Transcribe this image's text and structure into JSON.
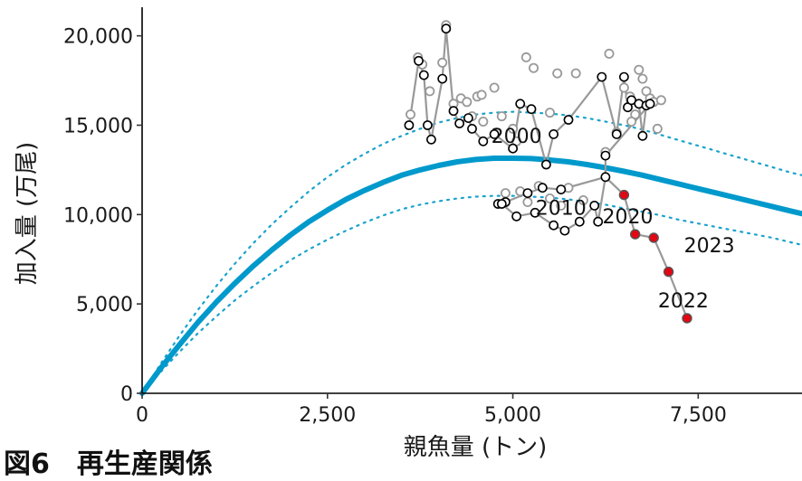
{
  "caption": "図6　再生産関係",
  "chart_data": {
    "type": "scatter",
    "xlabel": "親魚量 (トン)",
    "ylabel": "加入量 (万尾)",
    "xlim": [
      0,
      8900
    ],
    "ylim": [
      0,
      21600
    ],
    "x_ticks": [
      0,
      2500,
      5000,
      7500
    ],
    "x_tick_labels": [
      "0",
      "2,500",
      "5,000",
      "7,500"
    ],
    "y_ticks": [
      0,
      5000,
      10000,
      15000,
      20000
    ],
    "y_tick_labels": [
      "0",
      "5,000",
      "10,000",
      "15,000",
      "20,000"
    ],
    "grid": false,
    "colors": {
      "curve": "#0099cc",
      "band": "#1aa3cc",
      "line": "#999999",
      "point_recent": "#e30613",
      "point_stroke": "#000000",
      "point_grey": "#999999"
    },
    "curve": {
      "style": "solid",
      "points": [
        [
          0,
          0
        ],
        [
          250,
          1400
        ],
        [
          500,
          2700
        ],
        [
          750,
          3950
        ],
        [
          1000,
          5100
        ],
        [
          1250,
          6150
        ],
        [
          1500,
          7130
        ],
        [
          1750,
          8020
        ],
        [
          2000,
          8850
        ],
        [
          2250,
          9600
        ],
        [
          2500,
          10250
        ],
        [
          2750,
          10850
        ],
        [
          3000,
          11350
        ],
        [
          3250,
          11800
        ],
        [
          3500,
          12200
        ],
        [
          3750,
          12500
        ],
        [
          4000,
          12750
        ],
        [
          4250,
          12950
        ],
        [
          4500,
          13080
        ],
        [
          4750,
          13150
        ],
        [
          5000,
          13150
        ],
        [
          5250,
          13130
        ],
        [
          5500,
          13050
        ],
        [
          5750,
          12950
        ],
        [
          6000,
          12800
        ],
        [
          6250,
          12620
        ],
        [
          6500,
          12420
        ],
        [
          6750,
          12200
        ],
        [
          7000,
          11950
        ],
        [
          7250,
          11700
        ],
        [
          7500,
          11450
        ],
        [
          7750,
          11200
        ],
        [
          8000,
          10950
        ],
        [
          8250,
          10700
        ],
        [
          8500,
          10450
        ],
        [
          8750,
          10200
        ],
        [
          8900,
          10050
        ]
      ]
    },
    "band_upper": {
      "style": "dotted",
      "points": [
        [
          0,
          0
        ],
        [
          250,
          1650
        ],
        [
          500,
          3200
        ],
        [
          750,
          4650
        ],
        [
          1000,
          6000
        ],
        [
          1250,
          7250
        ],
        [
          1500,
          8400
        ],
        [
          1750,
          9450
        ],
        [
          2000,
          10400
        ],
        [
          2250,
          11300
        ],
        [
          2500,
          12100
        ],
        [
          2750,
          12800
        ],
        [
          3000,
          13400
        ],
        [
          3250,
          13950
        ],
        [
          3500,
          14400
        ],
        [
          3750,
          14800
        ],
        [
          4000,
          15150
        ],
        [
          4250,
          15400
        ],
        [
          4500,
          15600
        ],
        [
          4750,
          15700
        ],
        [
          5000,
          15750
        ],
        [
          5250,
          15700
        ],
        [
          5500,
          15650
        ],
        [
          5750,
          15550
        ],
        [
          6000,
          15400
        ],
        [
          6250,
          15200
        ],
        [
          6500,
          15000
        ],
        [
          6750,
          14750
        ],
        [
          7000,
          14450
        ],
        [
          7250,
          14150
        ],
        [
          7500,
          13850
        ],
        [
          7750,
          13550
        ],
        [
          8000,
          13250
        ],
        [
          8250,
          12950
        ],
        [
          8500,
          12650
        ],
        [
          8750,
          12350
        ],
        [
          8900,
          12200
        ]
      ]
    },
    "band_lower": {
      "style": "dotted",
      "points": [
        [
          0,
          0
        ],
        [
          250,
          1200
        ],
        [
          500,
          2300
        ],
        [
          750,
          3350
        ],
        [
          1000,
          4300
        ],
        [
          1250,
          5200
        ],
        [
          1500,
          6000
        ],
        [
          1750,
          6750
        ],
        [
          2000,
          7450
        ],
        [
          2250,
          8050
        ],
        [
          2500,
          8600
        ],
        [
          2750,
          9100
        ],
        [
          3000,
          9550
        ],
        [
          3250,
          9950
        ],
        [
          3500,
          10300
        ],
        [
          3750,
          10550
        ],
        [
          4000,
          10750
        ],
        [
          4250,
          10900
        ],
        [
          4500,
          11000
        ],
        [
          4750,
          11050
        ],
        [
          5000,
          11050
        ],
        [
          5250,
          11000
        ],
        [
          5500,
          10950
        ],
        [
          5750,
          10850
        ],
        [
          6000,
          10700
        ],
        [
          6250,
          10550
        ],
        [
          6500,
          10350
        ],
        [
          6750,
          10150
        ],
        [
          7000,
          9950
        ],
        [
          7250,
          9700
        ],
        [
          7500,
          9500
        ],
        [
          7750,
          9300
        ],
        [
          8000,
          9100
        ],
        [
          8250,
          8900
        ],
        [
          8500,
          8700
        ],
        [
          8750,
          8450
        ],
        [
          8900,
          8300
        ]
      ]
    },
    "series": [
      {
        "style": "grey-open",
        "points": [
          [
            3620,
            15600
          ],
          [
            3720,
            18800
          ],
          [
            3780,
            18400
          ],
          [
            3880,
            16900
          ],
          [
            4050,
            18500
          ],
          [
            4100,
            20600
          ],
          [
            4200,
            16200
          ],
          [
            4300,
            16500
          ],
          [
            4380,
            16300
          ],
          [
            4450,
            15500
          ],
          [
            4520,
            16600
          ],
          [
            4580,
            16700
          ],
          [
            4600,
            15200
          ],
          [
            4750,
            17100
          ],
          [
            4850,
            15500
          ],
          [
            5000,
            14800
          ],
          [
            5050,
            14100
          ],
          [
            5180,
            18800
          ],
          [
            5280,
            18200
          ],
          [
            5500,
            15700
          ],
          [
            5600,
            17900
          ],
          [
            5850,
            17900
          ],
          [
            6300,
            19000
          ],
          [
            6500,
            17100
          ],
          [
            6580,
            16600
          ],
          [
            6650,
            15600
          ],
          [
            6700,
            18100
          ],
          [
            6750,
            17600
          ],
          [
            6800,
            16900
          ],
          [
            6850,
            16500
          ],
          [
            6900,
            16300
          ],
          [
            6950,
            14800
          ],
          [
            7000,
            16400
          ],
          [
            6250,
            13500
          ],
          [
            6400,
            14600
          ],
          [
            6600,
            15200
          ],
          [
            4900,
            11200
          ],
          [
            5100,
            11300
          ],
          [
            5200,
            10700
          ],
          [
            5350,
            11600
          ],
          [
            5500,
            10900
          ],
          [
            5650,
            10500
          ],
          [
            5750,
            11500
          ],
          [
            5950,
            10800
          ]
        ]
      },
      {
        "style": "black-open",
        "points": [
          [
            3600,
            15000
          ],
          [
            3730,
            18600
          ],
          [
            3800,
            17800
          ],
          [
            3850,
            15000
          ],
          [
            3900,
            14200
          ],
          [
            4050,
            17600
          ],
          [
            4100,
            20400
          ],
          [
            4200,
            15800
          ],
          [
            4280,
            15100
          ],
          [
            4400,
            15400
          ],
          [
            4450,
            14800
          ],
          [
            4600,
            14100
          ],
          [
            4750,
            14500
          ],
          [
            5000,
            13700
          ],
          [
            5100,
            16200
          ],
          [
            5250,
            15900
          ],
          [
            5450,
            12800
          ],
          [
            5550,
            14500
          ],
          [
            5750,
            15300
          ],
          [
            6200,
            17700
          ],
          [
            6400,
            14500
          ],
          [
            6500,
            17700
          ],
          [
            6550,
            16000
          ],
          [
            6600,
            16400
          ],
          [
            6700,
            16200
          ],
          [
            6750,
            14400
          ],
          [
            6800,
            16100
          ],
          [
            6850,
            16200
          ],
          [
            6250,
            13300
          ],
          [
            5650,
            11400
          ],
          [
            5400,
            11500
          ],
          [
            5200,
            11200
          ],
          [
            4900,
            10700
          ],
          [
            4800,
            10600
          ],
          [
            4850,
            10600
          ],
          [
            5050,
            9900
          ],
          [
            5300,
            10100
          ],
          [
            5550,
            9400
          ],
          [
            5700,
            9100
          ],
          [
            5900,
            9600
          ],
          [
            6100,
            10500
          ],
          [
            6150,
            9600
          ],
          [
            6250,
            12100
          ]
        ]
      },
      {
        "style": "red-filled",
        "points": [
          [
            6500,
            11100
          ],
          [
            6650,
            8900
          ],
          [
            6900,
            8700
          ],
          [
            7100,
            6800
          ],
          [
            7350,
            4200
          ]
        ]
      }
    ],
    "path": [
      [
        3600,
        15000
      ],
      [
        3730,
        18600
      ],
      [
        3800,
        17800
      ],
      [
        3850,
        15000
      ],
      [
        3900,
        14200
      ],
      [
        4050,
        17600
      ],
      [
        4100,
        20400
      ],
      [
        4200,
        15800
      ],
      [
        4280,
        15100
      ],
      [
        4400,
        15400
      ],
      [
        4450,
        14800
      ],
      [
        4600,
        14100
      ],
      [
        4750,
        14500
      ],
      [
        5000,
        13700
      ],
      [
        5100,
        16200
      ],
      [
        5250,
        15900
      ],
      [
        5450,
        12800
      ],
      [
        5550,
        14500
      ],
      [
        5750,
        15300
      ],
      [
        6200,
        17700
      ],
      [
        6400,
        14500
      ],
      [
        6500,
        17700
      ],
      [
        6550,
        16000
      ],
      [
        6600,
        16400
      ],
      [
        6700,
        16200
      ],
      [
        6750,
        14400
      ],
      [
        6800,
        16100
      ],
      [
        6850,
        16200
      ],
      [
        6250,
        13300
      ],
      [
        6250,
        12100
      ],
      [
        5650,
        11400
      ],
      [
        5400,
        11500
      ],
      [
        5200,
        11200
      ],
      [
        4900,
        10700
      ],
      [
        4800,
        10600
      ],
      [
        4850,
        10600
      ],
      [
        5050,
        9900
      ],
      [
        5300,
        10100
      ],
      [
        5550,
        9400
      ],
      [
        5700,
        9100
      ],
      [
        5900,
        9600
      ],
      [
        6100,
        10500
      ],
      [
        6150,
        9600
      ],
      [
        6250,
        12100
      ],
      [
        6500,
        11100
      ],
      [
        6650,
        8900
      ],
      [
        6900,
        8700
      ],
      [
        7100,
        6800
      ],
      [
        7350,
        4200
      ]
    ],
    "annotations": [
      {
        "text": "2000",
        "x": 5050,
        "y": 14000
      },
      {
        "text": "2010",
        "x": 5650,
        "y": 10000
      },
      {
        "text": "2020",
        "x": 6550,
        "y": 9500
      },
      {
        "text": "2023",
        "x": 7650,
        "y": 7900
      },
      {
        "text": "2022",
        "x": 7300,
        "y": 4800
      }
    ]
  }
}
